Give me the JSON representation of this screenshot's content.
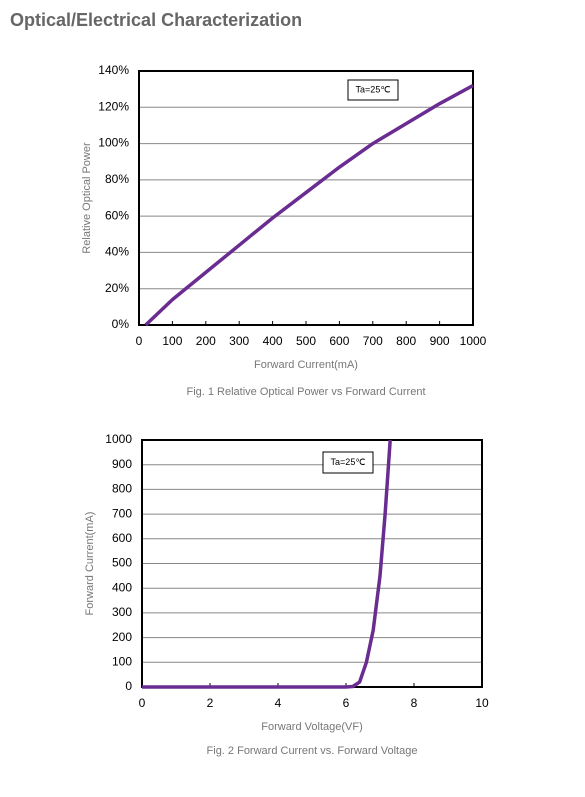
{
  "header": {
    "title": "Optical/Electrical Characterization"
  },
  "chart_data": [
    {
      "type": "line",
      "caption": "Fig. 1 Relative Optical Power vs Forward Current",
      "x_label": "Forward Current(mA)",
      "y_label": "Relative Optical Power",
      "annotation": "Ta=25℃",
      "x": [
        20,
        100,
        200,
        300,
        400,
        500,
        600,
        700,
        800,
        900,
        1000
      ],
      "values": [
        0,
        14,
        29,
        44,
        59,
        73,
        87,
        100,
        111,
        122,
        132
      ],
      "color": "#6a2c91",
      "xlim": [
        0,
        1000
      ],
      "xticks": [
        0,
        100,
        200,
        300,
        400,
        500,
        600,
        700,
        800,
        900,
        1000
      ],
      "ylim": [
        0,
        140
      ],
      "yticks": [
        {
          "value": 0,
          "label": "0%"
        },
        {
          "value": 20,
          "label": "20%"
        },
        {
          "value": 40,
          "label": "40%"
        },
        {
          "value": 60,
          "label": "60%"
        },
        {
          "value": 80,
          "label": "80%"
        },
        {
          "value": 100,
          "label": "100%"
        },
        {
          "value": 120,
          "label": "120%"
        },
        {
          "value": 140,
          "label": "140%"
        }
      ],
      "grid": true
    },
    {
      "type": "line",
      "caption": "Fig. 2 Forward Current vs. Forward Voltage",
      "x_label": "Forward Voltage(VF)",
      "y_label": "Forward Current(mA)",
      "annotation": "Ta=25℃",
      "x": [
        0,
        6,
        6.2,
        6.4,
        6.6,
        6.8,
        7.0,
        7.15,
        7.3
      ],
      "values": [
        0,
        0,
        2,
        20,
        100,
        230,
        450,
        700,
        1000
      ],
      "color": "#6a2c91",
      "xlim": [
        0,
        10
      ],
      "xticks": [
        0,
        2,
        4,
        6,
        8,
        10
      ],
      "ylim": [
        0,
        1000
      ],
      "yticks": [
        0,
        100,
        200,
        300,
        400,
        500,
        600,
        700,
        800,
        900,
        1000
      ],
      "grid": true
    }
  ]
}
